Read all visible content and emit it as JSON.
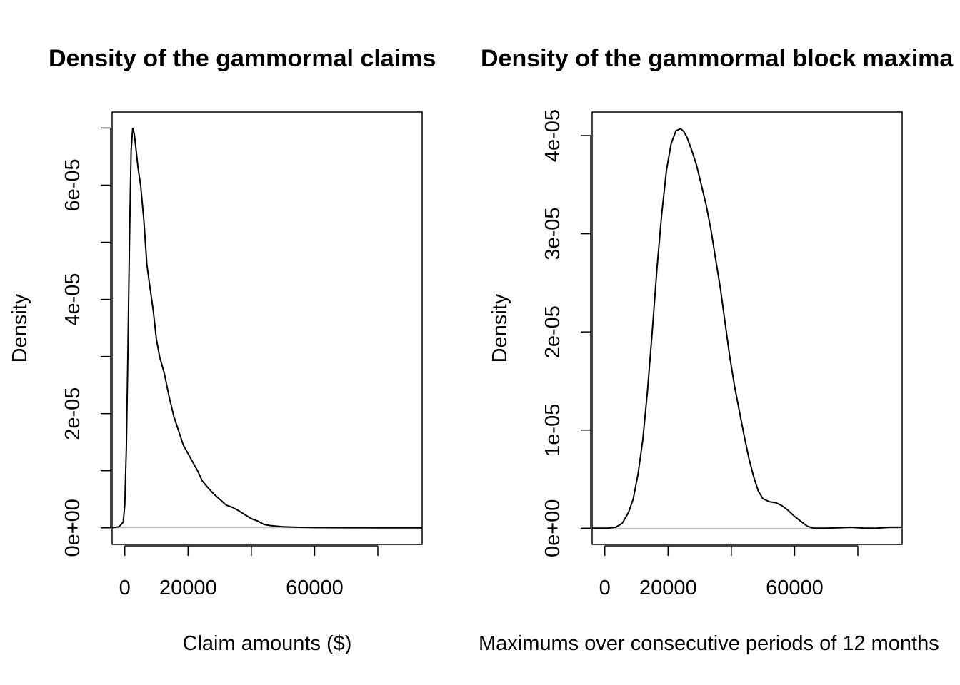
{
  "chart_data": [
    {
      "type": "line",
      "title": "Density of the gammormal claims",
      "xlabel": "Claim amounts ($)",
      "ylabel": "Density",
      "xlim": [
        -4000,
        94000
      ],
      "ylim": [
        -2.9e-06,
        7.28e-05
      ],
      "x_ticks": [
        0,
        20000,
        40000,
        60000,
        80000
      ],
      "x_tick_labels": [
        "0",
        "20000",
        "",
        "60000",
        ""
      ],
      "y_ticks": [
        0,
        1e-05,
        2e-05,
        3e-05,
        4e-05,
        5e-05,
        6e-05,
        7e-05
      ],
      "y_tick_labels": [
        "0e+00",
        "",
        "2e-05",
        "",
        "4e-05",
        "",
        "6e-05",
        ""
      ],
      "baseline": 0,
      "grid": false,
      "series": [
        {
          "x": [
            -4000,
            -1800,
            -500,
            0,
            500,
            1000,
            1500,
            2000,
            2500,
            3000,
            3600,
            4200,
            5000,
            6000,
            7000,
            8000,
            9000,
            10000,
            11000,
            12500,
            14000,
            15500,
            17000,
            18500,
            20000,
            21500,
            23000,
            24500,
            26000,
            28000,
            30000,
            32000,
            34000,
            36000,
            38000,
            40000,
            42000,
            44000,
            46000,
            50000,
            55000,
            60000,
            70000,
            80000,
            94000
          ],
          "y": [
            0,
            2e-07,
            1e-06,
            4e-06,
            1.4e-05,
            3.1e-05,
            5.1e-05,
            6.6e-05,
            7e-05,
            6.9e-05,
            6.6e-05,
            6.3e-05,
            6e-05,
            5.4e-05,
            4.6e-05,
            4.2e-05,
            3.8e-05,
            3.3e-05,
            3e-05,
            2.7e-05,
            2.3e-05,
            1.95e-05,
            1.7e-05,
            1.45e-05,
            1.3e-05,
            1.15e-05,
            1e-05,
            8.2e-06,
            7.2e-06,
            6e-06,
            5e-06,
            4e-06,
            3.6e-06,
            3e-06,
            2.3e-06,
            1.6e-06,
            1.2e-06,
            6e-07,
            4e-07,
            2e-07,
            1e-07,
            5e-08,
            2e-08,
            1e-08,
            0
          ]
        }
      ]
    },
    {
      "type": "line",
      "title": "Density of the gammormal block maxima",
      "xlabel": "Maximums over consecutive periods of 12 months",
      "ylabel": "Density",
      "xlim": [
        -4000,
        94000
      ],
      "ylim": [
        -1.65e-06,
        4.24e-05
      ],
      "x_ticks": [
        0,
        20000,
        40000,
        60000,
        80000
      ],
      "x_tick_labels": [
        "0",
        "20000",
        "",
        "60000",
        ""
      ],
      "y_ticks": [
        0,
        1e-05,
        2e-05,
        3e-05,
        4e-05
      ],
      "y_tick_labels": [
        "0e+00",
        "1e-05",
        "2e-05",
        "3e-05",
        "4e-05"
      ],
      "baseline": 0,
      "grid": false,
      "series": [
        {
          "x": [
            -4000,
            1000,
            3500,
            5500,
            7500,
            9000,
            10500,
            12000,
            13500,
            15000,
            16500,
            18000,
            19500,
            21000,
            22500,
            24000,
            25000,
            26000,
            27500,
            29000,
            30500,
            32000,
            33500,
            35000,
            36500,
            38000,
            39500,
            41000,
            42500,
            44000,
            45500,
            47000,
            48500,
            50000,
            52000,
            54000,
            56000,
            58000,
            60000,
            62000,
            64000,
            66000,
            68000,
            70000,
            74000,
            78000,
            82000,
            86000,
            90000,
            94000
          ],
          "y": [
            0,
            0,
            1e-07,
            5e-07,
            1.6e-06,
            3e-06,
            5.5e-06,
            9e-06,
            1.4e-05,
            2e-05,
            2.65e-05,
            3.2e-05,
            3.65e-05,
            3.92e-05,
            4.05e-05,
            4.07e-05,
            4.04e-05,
            3.98e-05,
            3.85e-05,
            3.7e-05,
            3.5e-05,
            3.3e-05,
            3.05e-05,
            2.75e-05,
            2.45e-05,
            2.1e-05,
            1.75e-05,
            1.45e-05,
            1.2e-05,
            9.5e-06,
            7.2e-06,
            5.3e-06,
            3.8e-06,
            3e-06,
            2.7e-06,
            2.6e-06,
            2.3e-06,
            1.8e-06,
            1.2e-06,
            7e-07,
            2e-07,
            0,
            0,
            0,
            5e-08,
            1e-07,
            0,
            0,
            1e-07,
            1e-07
          ]
        }
      ]
    }
  ]
}
